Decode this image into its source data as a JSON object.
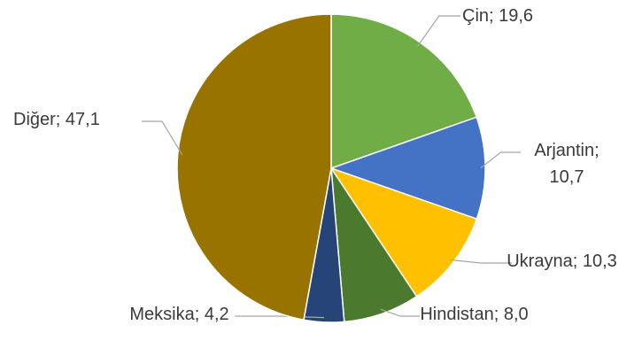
{
  "chart_data": {
    "type": "pie",
    "categories": [
      "Çin",
      "Arjantin",
      "Ukrayna",
      "Hindistan",
      "Meksika",
      "Diğer"
    ],
    "values": [
      19.6,
      10.7,
      10.3,
      8.0,
      4.2,
      47.1
    ],
    "value_labels": [
      "Çin; 19,6",
      "Arjantin; 10,7",
      "Ukrayna; 10,3",
      "Hindistan; 8,0",
      "Meksika; 4,2",
      "Diğer; 47,1"
    ],
    "colors": [
      "#70ad47",
      "#4472c4",
      "#ffc000",
      "#4b7a2e",
      "#264478",
      "#997300"
    ]
  }
}
